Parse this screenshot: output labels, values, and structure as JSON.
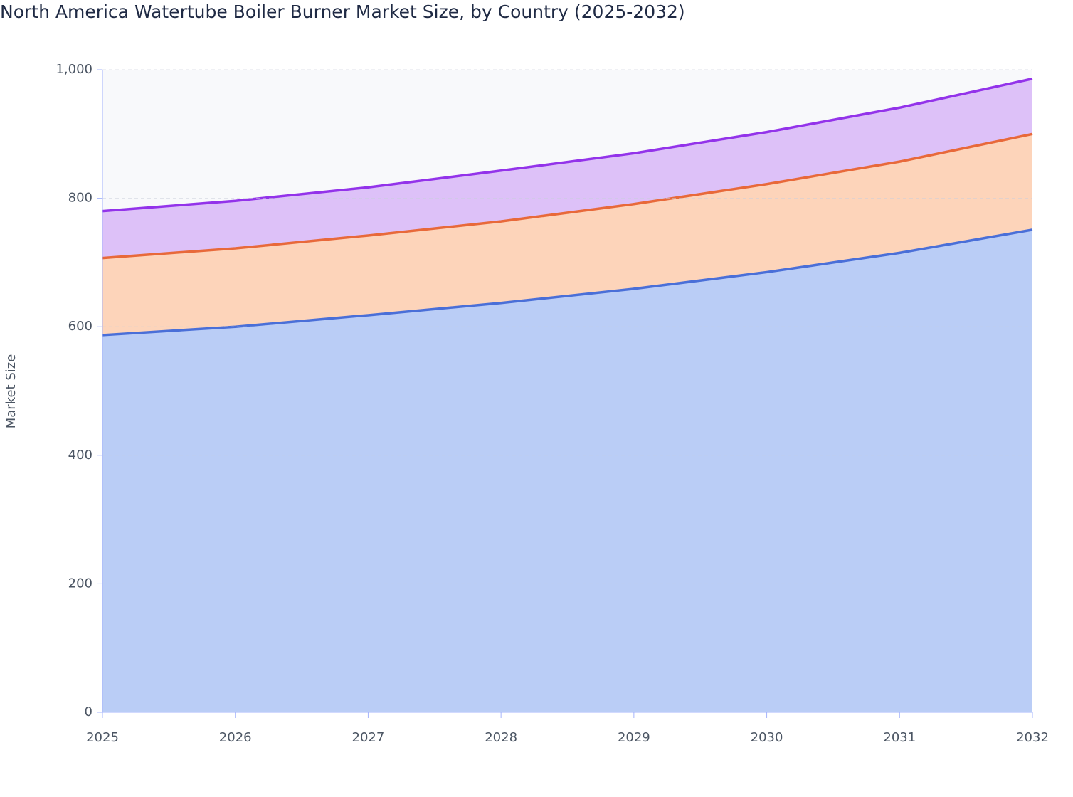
{
  "chart_data": {
    "type": "stacked-area",
    "title": "North America Watertube Boiler Burner Market Size, by Country (2025-2032)",
    "y_label": "Market Size",
    "x": [
      2025,
      2026,
      2027,
      2028,
      2029,
      2030,
      2031,
      2032
    ],
    "xlim": [
      2025,
      2032
    ],
    "xticks": [
      2025,
      2026,
      2027,
      2028,
      2029,
      2030,
      2031,
      2032
    ],
    "ylim": [
      0,
      1000
    ],
    "yticks": [
      0,
      200,
      400,
      600,
      800,
      {
        "value": 1000,
        "label": "1,000"
      }
    ],
    "grid": true,
    "series": [
      {
        "color": "#4a6fd8",
        "fill": "#bacdf6",
        "values": [
          587,
          600,
          618,
          637,
          659,
          685,
          715,
          751
        ]
      },
      {
        "color": "#e8693a",
        "fill": "#fdd4ba",
        "values": [
          120,
          122,
          124,
          127,
          132,
          137,
          142,
          149
        ]
      },
      {
        "color": "#9333ea",
        "fill": "#ddc1f8",
        "values": [
          73,
          74,
          75,
          79,
          79,
          81,
          84,
          86
        ]
      }
    ]
  }
}
